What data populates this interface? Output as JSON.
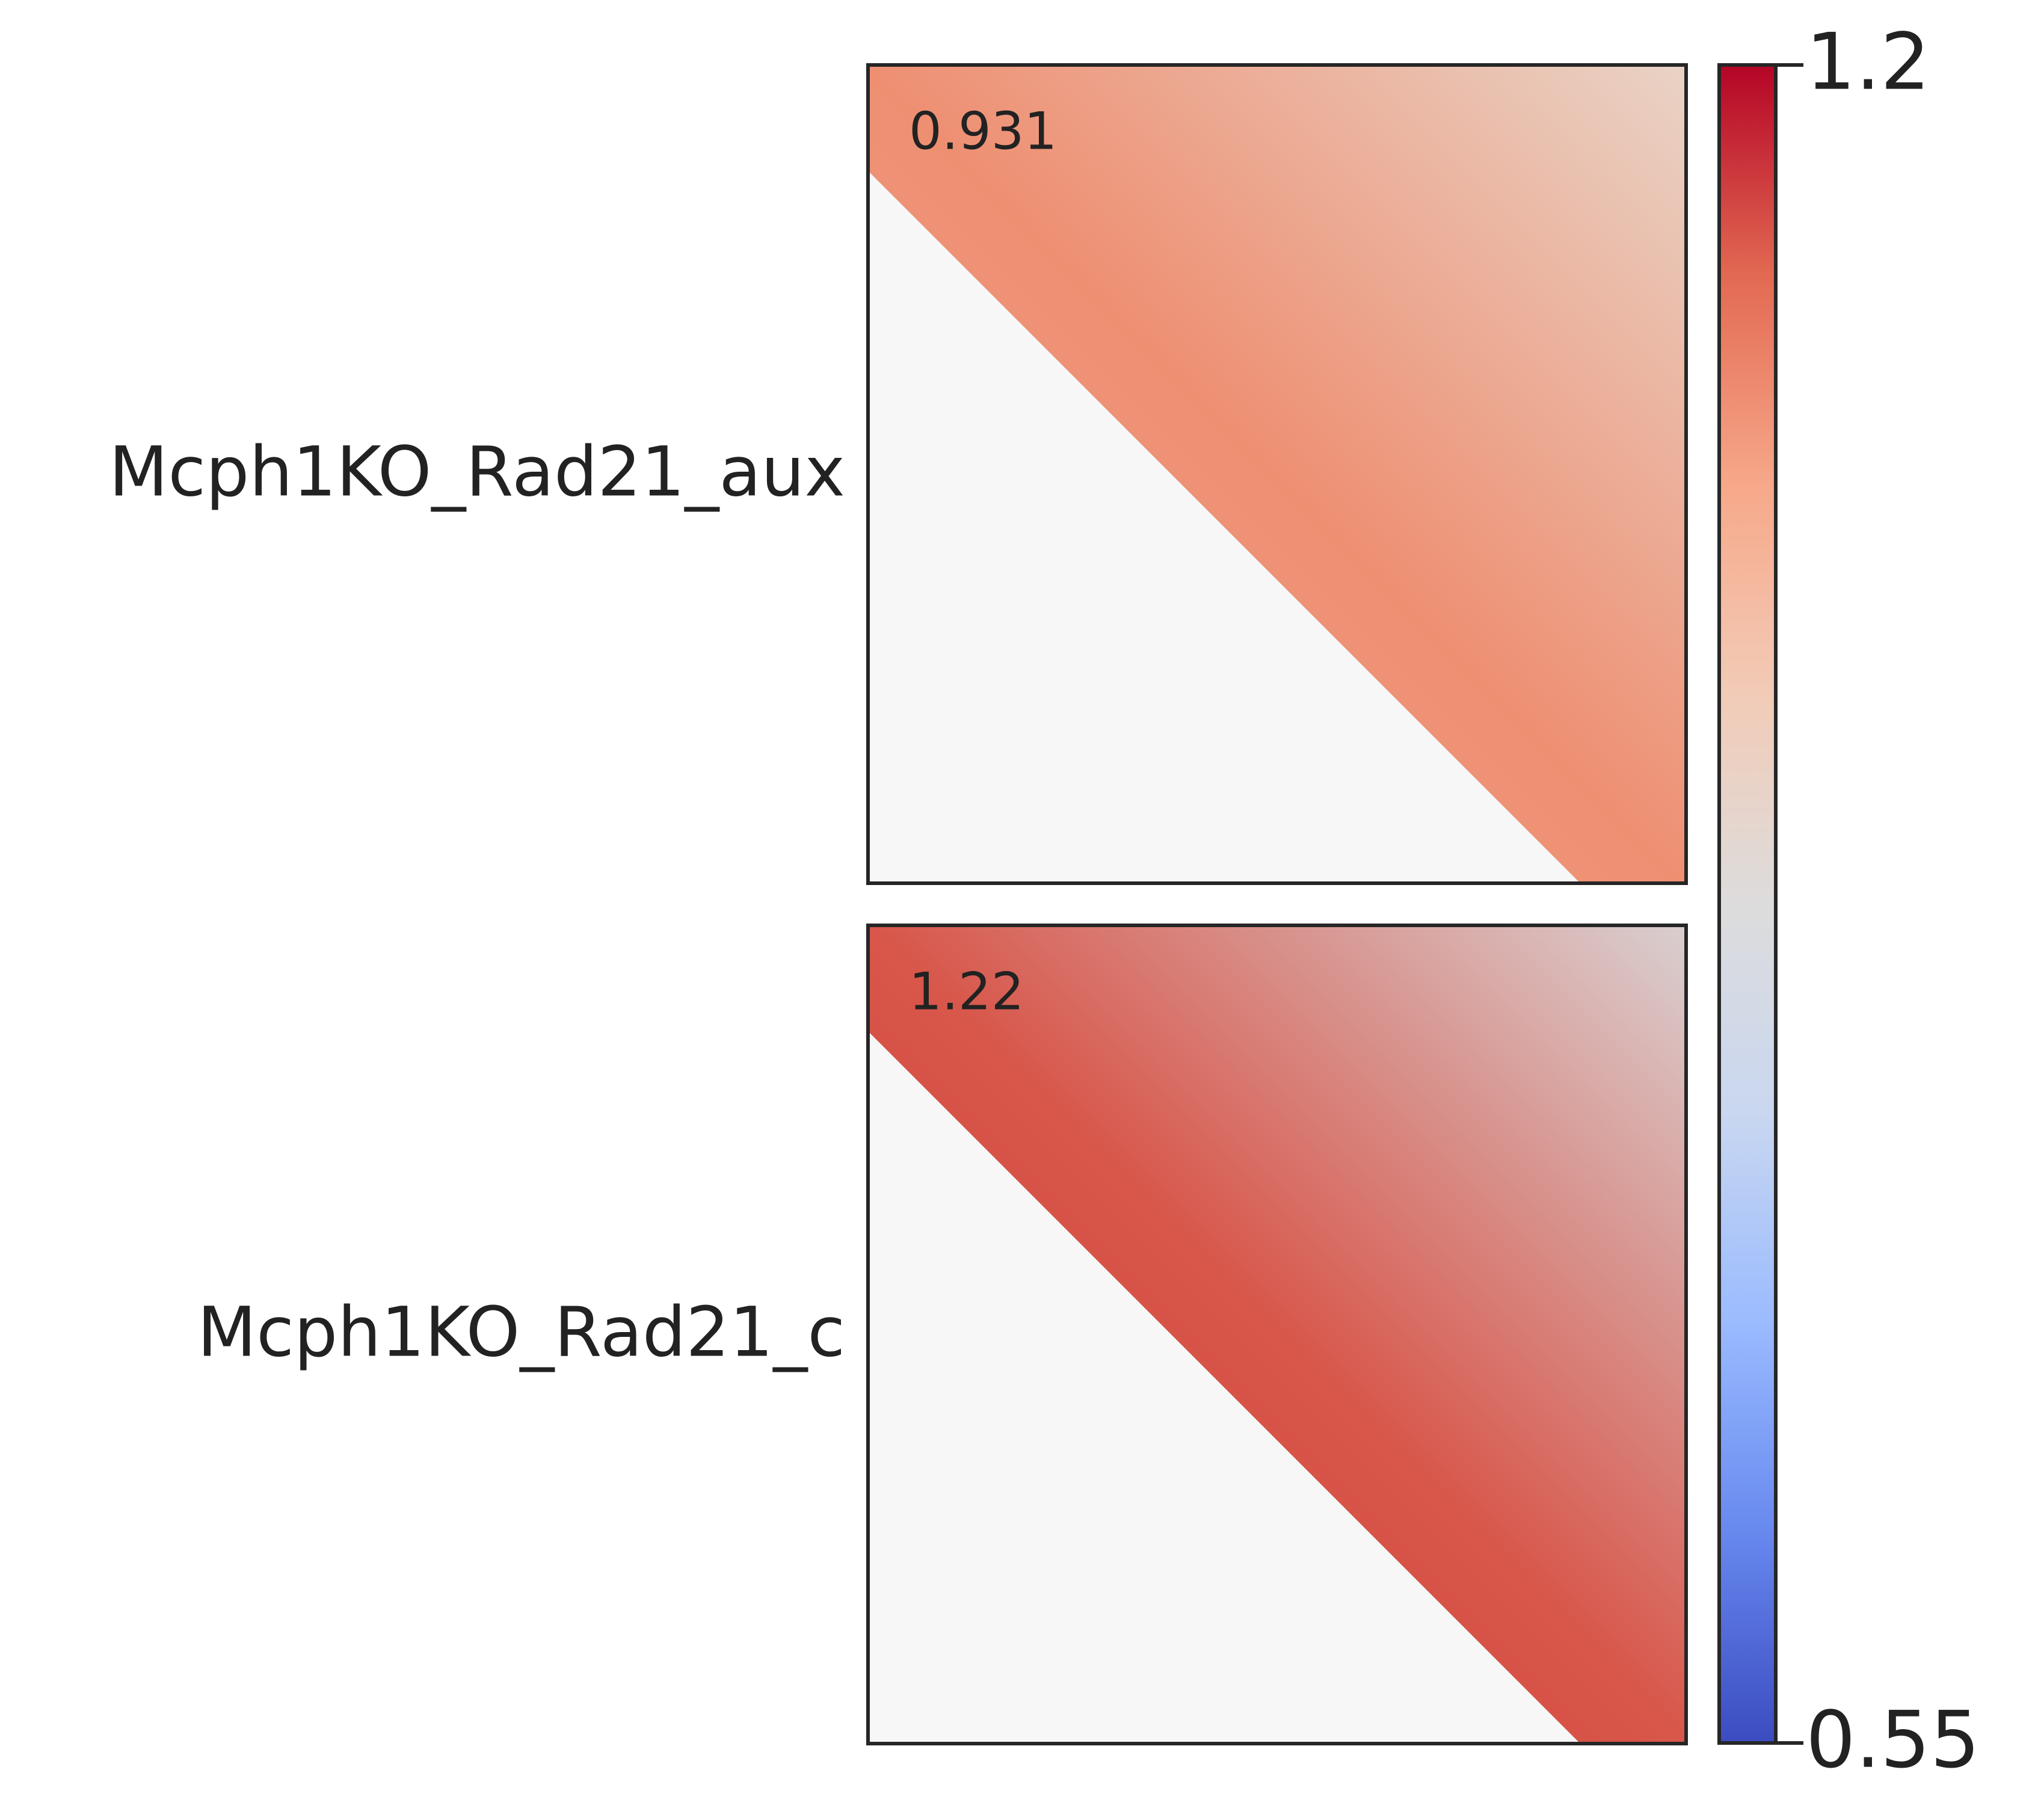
{
  "chart_data": {
    "type": "heatmap",
    "panels": [
      {
        "label": "Mcph1KO_Rad21_aux",
        "annotation": 0.931,
        "colors": [
          "#f1a287",
          "#ee8f72",
          "#e9d3c6"
        ]
      },
      {
        "label": "Mcph1KO_Rad21_c",
        "annotation": 1.22,
        "colors": [
          "#cf3b33",
          "#d8564a",
          "#d9cfd0"
        ]
      }
    ],
    "colorbar": {
      "lim": [
        0.55,
        1.2
      ],
      "ticks": [
        1.2,
        0.55
      ],
      "colors": [
        "#3b4cc0",
        "#6788ee",
        "#9abbff",
        "#c9d7f0",
        "#dddcdc",
        "#f2cbb7",
        "#f7a889",
        "#e26952",
        "#b40426"
      ]
    }
  }
}
